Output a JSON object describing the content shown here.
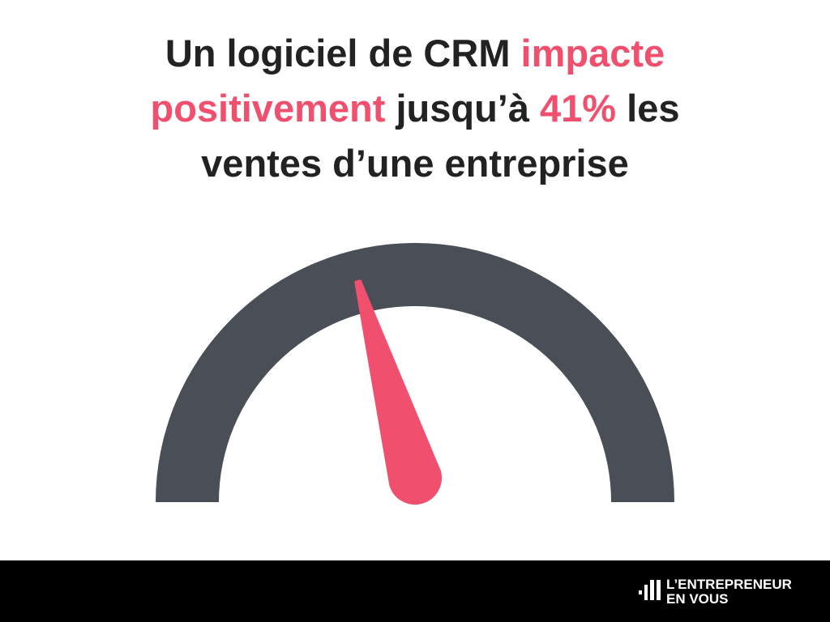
{
  "chart_data": {
    "type": "gauge",
    "title": [
      [
        {
          "text": "Un logiciel de CRM ",
          "color": "#222222"
        },
        {
          "text": "impacte",
          "color": "#f0506e"
        }
      ],
      [
        {
          "text": "positivement",
          "color": "#f0506e"
        },
        {
          "text": " jusqu’à ",
          "color": "#222222"
        },
        {
          "text": "41%",
          "color": "#f0506e"
        },
        {
          "text": " les",
          "color": "#222222"
        }
      ],
      [
        {
          "text": "ventes d’une entreprise",
          "color": "#222222"
        }
      ]
    ],
    "value": 41,
    "ylim": [
      0,
      100
    ],
    "color": "#f0506e",
    "track_color": "#4a4f57"
  },
  "footer": {
    "logo": [
      "L’ENTREPRENEUR",
      "EN VOUS"
    ]
  }
}
